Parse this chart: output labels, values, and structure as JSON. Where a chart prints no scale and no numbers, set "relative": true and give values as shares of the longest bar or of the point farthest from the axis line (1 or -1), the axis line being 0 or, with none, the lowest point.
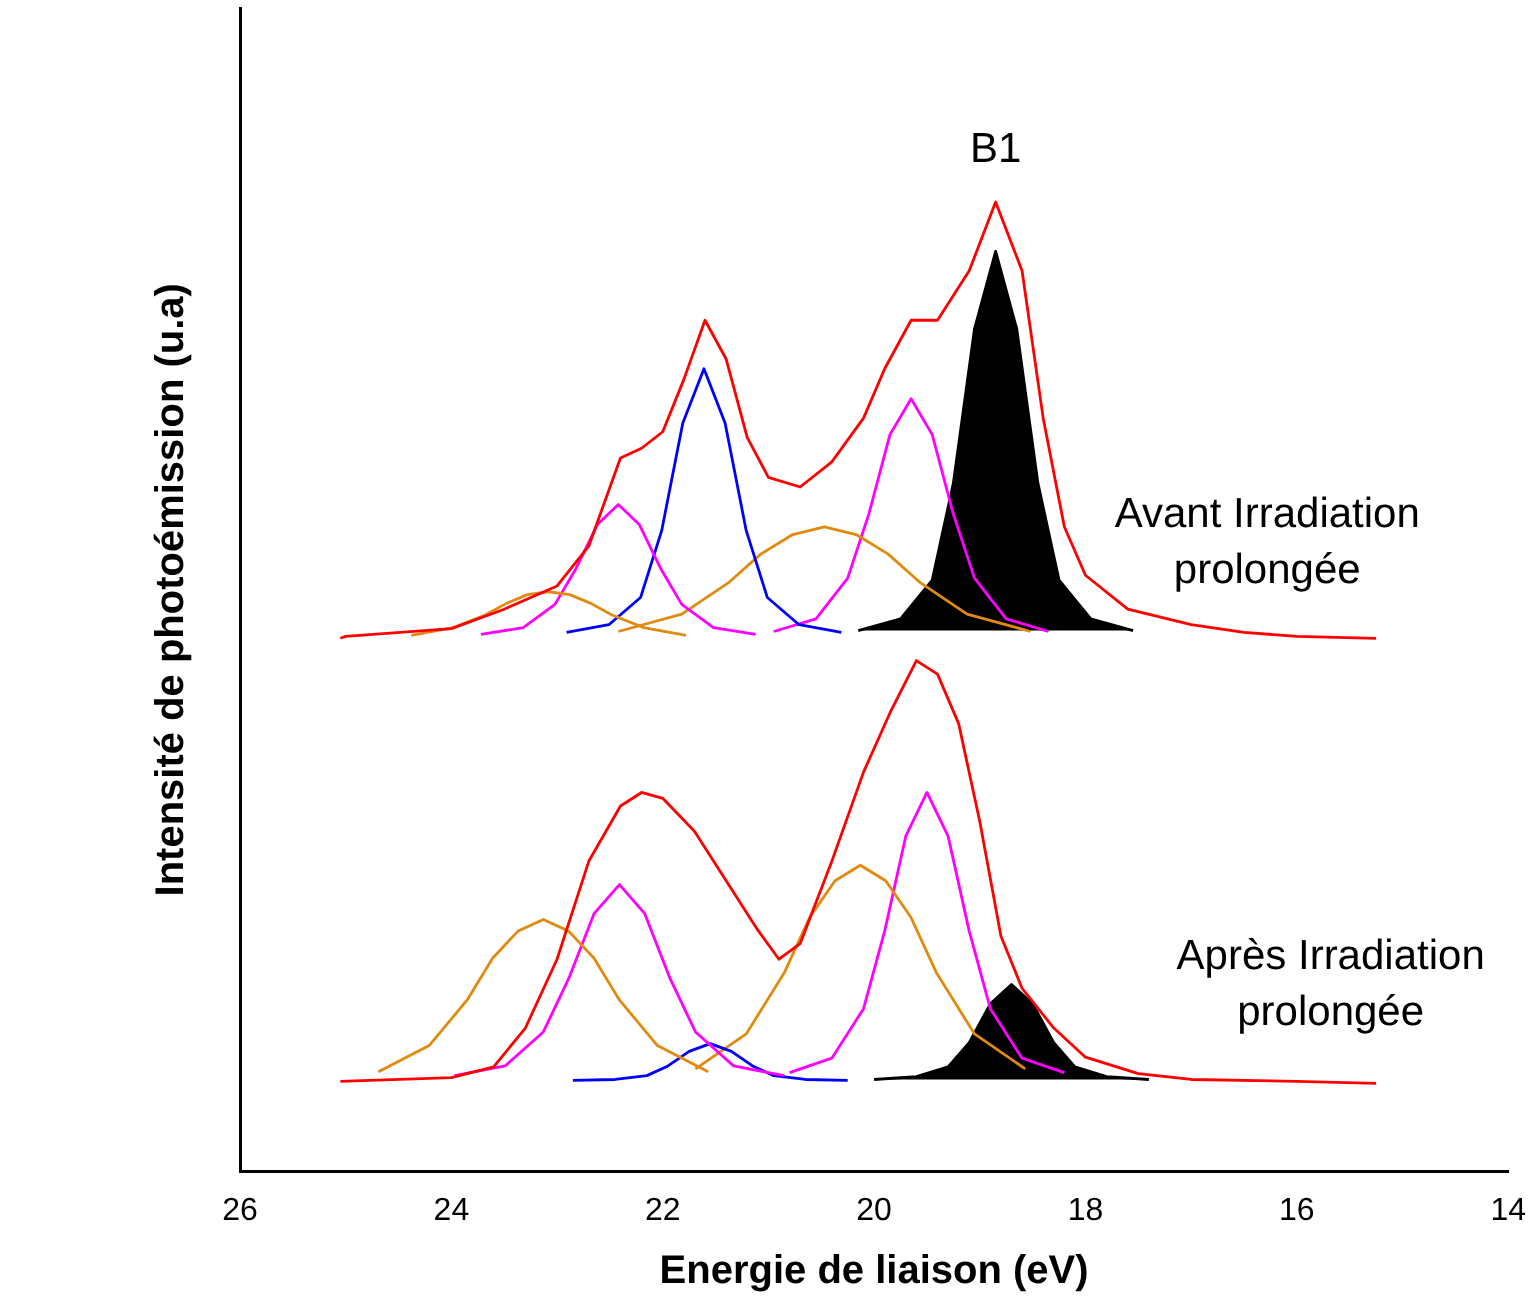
{
  "chart_data": {
    "type": "line",
    "relative": true,
    "xlabel": "Energie de liaison (eV)",
    "ylabel": "Intensité de photoémission (u.a)",
    "xlim": [
      26,
      14
    ],
    "xticks": [
      26,
      24,
      22,
      20,
      18,
      16,
      14
    ],
    "grid": false,
    "legend": false,
    "marker": "none",
    "line_style": "solid",
    "annotations": [
      {
        "text": "B1",
        "x": 18.85,
        "y": 1.0
      },
      "Avant Irradiation\nprolongée",
      "Après Irradiation\nprolongée"
    ],
    "series": [
      {
        "color": "#ff0000",
        "x": [
          25.05,
          25,
          24,
          23.5,
          23,
          22.7,
          22.4,
          22.2,
          22.0,
          21.8,
          21.6,
          21.4,
          21.2,
          21.0,
          20.7,
          20.4,
          20.1,
          19.9,
          19.65,
          19.4,
          19.1,
          18.85,
          18.6,
          18.4,
          18.2,
          18.0,
          17.6,
          17.0,
          16.5,
          16.0,
          15.25
        ],
        "values": [
          0.55,
          0.552,
          0.56,
          0.58,
          0.604,
          0.645,
          0.736,
          0.746,
          0.763,
          0.817,
          0.878,
          0.838,
          0.757,
          0.716,
          0.706,
          0.732,
          0.777,
          0.828,
          0.878,
          0.878,
          0.929,
          1.0,
          0.929,
          0.777,
          0.665,
          0.615,
          0.58,
          0.564,
          0.556,
          0.552,
          0.55
        ]
      },
      {
        "color": "#ff0000",
        "x": [
          25.05,
          24,
          23.6,
          23.3,
          23.0,
          22.7,
          22.4,
          22.2,
          22.0,
          21.7,
          21.4,
          21.1,
          20.9,
          20.7,
          20.4,
          20.1,
          19.85,
          19.6,
          19.4,
          19.2,
          19.0,
          18.8,
          18.6,
          18.3,
          18.0,
          17.5,
          17.0,
          16.0,
          15.25
        ],
        "values": [
          0.093,
          0.097,
          0.108,
          0.148,
          0.219,
          0.32,
          0.377,
          0.391,
          0.385,
          0.351,
          0.3,
          0.249,
          0.219,
          0.235,
          0.32,
          0.412,
          0.473,
          0.527,
          0.513,
          0.462,
          0.361,
          0.243,
          0.189,
          0.148,
          0.118,
          0.101,
          0.095,
          0.093,
          0.091
        ]
      },
      {
        "color": "#e08a10",
        "x": [
          24.38,
          23.98,
          23.68,
          23.48,
          23.28,
          23.08,
          22.88,
          22.68,
          22.48,
          22.18,
          21.78
        ],
        "values": [
          0.553,
          0.561,
          0.574,
          0.586,
          0.595,
          0.598,
          0.595,
          0.586,
          0.574,
          0.561,
          0.553
        ]
      },
      {
        "color": "#ff00ff",
        "x": [
          23.72,
          23.32,
          23.02,
          22.82,
          22.62,
          22.42,
          22.22,
          22.02,
          21.82,
          21.52,
          21.12
        ],
        "values": [
          0.554,
          0.561,
          0.585,
          0.622,
          0.667,
          0.688,
          0.667,
          0.622,
          0.585,
          0.561,
          0.554
        ]
      },
      {
        "color": "#0000ff",
        "x": [
          22.91,
          22.51,
          22.21,
          22.01,
          21.81,
          21.61,
          21.41,
          21.21,
          21.01,
          20.71,
          20.31
        ],
        "values": [
          0.556,
          0.564,
          0.592,
          0.661,
          0.772,
          0.828,
          0.772,
          0.661,
          0.592,
          0.564,
          0.556
        ]
      },
      {
        "color": "#e08a10",
        "x": [
          22.42,
          21.82,
          21.37,
          21.07,
          20.77,
          20.47,
          20.17,
          19.87,
          19.57,
          19.12,
          18.52
        ],
        "values": [
          0.557,
          0.575,
          0.608,
          0.637,
          0.657,
          0.665,
          0.657,
          0.637,
          0.608,
          0.575,
          0.557
        ]
      },
      {
        "color": "#ff00ff",
        "x": [
          20.95,
          20.55,
          20.25,
          20.05,
          19.85,
          19.65,
          19.45,
          19.25,
          19.05,
          18.75,
          18.35
        ],
        "values": [
          0.557,
          0.57,
          0.612,
          0.678,
          0.76,
          0.797,
          0.76,
          0.678,
          0.612,
          0.57,
          0.557
        ]
      },
      {
        "color": "#e08a10",
        "x": [
          24.69,
          24.21,
          23.85,
          23.61,
          23.37,
          23.13,
          22.89,
          22.65,
          22.41,
          22.05,
          21.57
        ],
        "values": [
          0.103,
          0.13,
          0.177,
          0.22,
          0.248,
          0.26,
          0.248,
          0.22,
          0.177,
          0.13,
          0.103
        ]
      },
      {
        "color": "#ff00ff",
        "x": [
          23.97,
          23.49,
          23.13,
          22.89,
          22.65,
          22.41,
          22.17,
          21.93,
          21.69,
          21.33,
          20.85
        ],
        "values": [
          0.099,
          0.109,
          0.144,
          0.199,
          0.266,
          0.296,
          0.266,
          0.199,
          0.144,
          0.109,
          0.099
        ]
      },
      {
        "color": "#0000ff",
        "x": [
          22.85,
          22.45,
          22.15,
          21.95,
          21.75,
          21.55,
          21.35,
          21.15,
          20.95,
          20.65,
          20.25
        ],
        "values": [
          0.094,
          0.095,
          0.099,
          0.109,
          0.124,
          0.132,
          0.124,
          0.109,
          0.099,
          0.095,
          0.094
        ]
      },
      {
        "color": "#e08a10",
        "x": [
          21.69,
          21.21,
          20.85,
          20.61,
          20.37,
          20.13,
          19.89,
          19.65,
          19.41,
          19.05,
          18.57
        ],
        "values": [
          0.106,
          0.142,
          0.205,
          0.262,
          0.3,
          0.316,
          0.3,
          0.262,
          0.205,
          0.142,
          0.106
        ]
      },
      {
        "color": "#ff00ff",
        "x": [
          20.8,
          20.4,
          20.1,
          19.9,
          19.7,
          19.5,
          19.3,
          19.1,
          18.9,
          18.6,
          18.2
        ],
        "values": [
          0.102,
          0.117,
          0.168,
          0.248,
          0.346,
          0.391,
          0.346,
          0.248,
          0.168,
          0.117,
          0.102
        ]
      },
      {
        "type": "area",
        "color": "#000000",
        "x": [
          20.15,
          19.75,
          19.45,
          19.25,
          19.05,
          18.85,
          18.65,
          18.45,
          18.25,
          17.95,
          17.55
        ],
        "values": [
          0.558,
          0.57,
          0.61,
          0.71,
          0.869,
          0.949,
          0.869,
          0.71,
          0.61,
          0.57,
          0.558
        ]
      },
      {
        "type": "area",
        "color": "#000000",
        "x": [
          20.0,
          19.6,
          19.3,
          19.1,
          18.9,
          18.7,
          18.5,
          18.3,
          18.1,
          17.8,
          17.4
        ],
        "values": [
          0.095,
          0.098,
          0.108,
          0.133,
          0.173,
          0.193,
          0.173,
          0.133,
          0.108,
          0.098,
          0.095
        ]
      }
    ]
  }
}
